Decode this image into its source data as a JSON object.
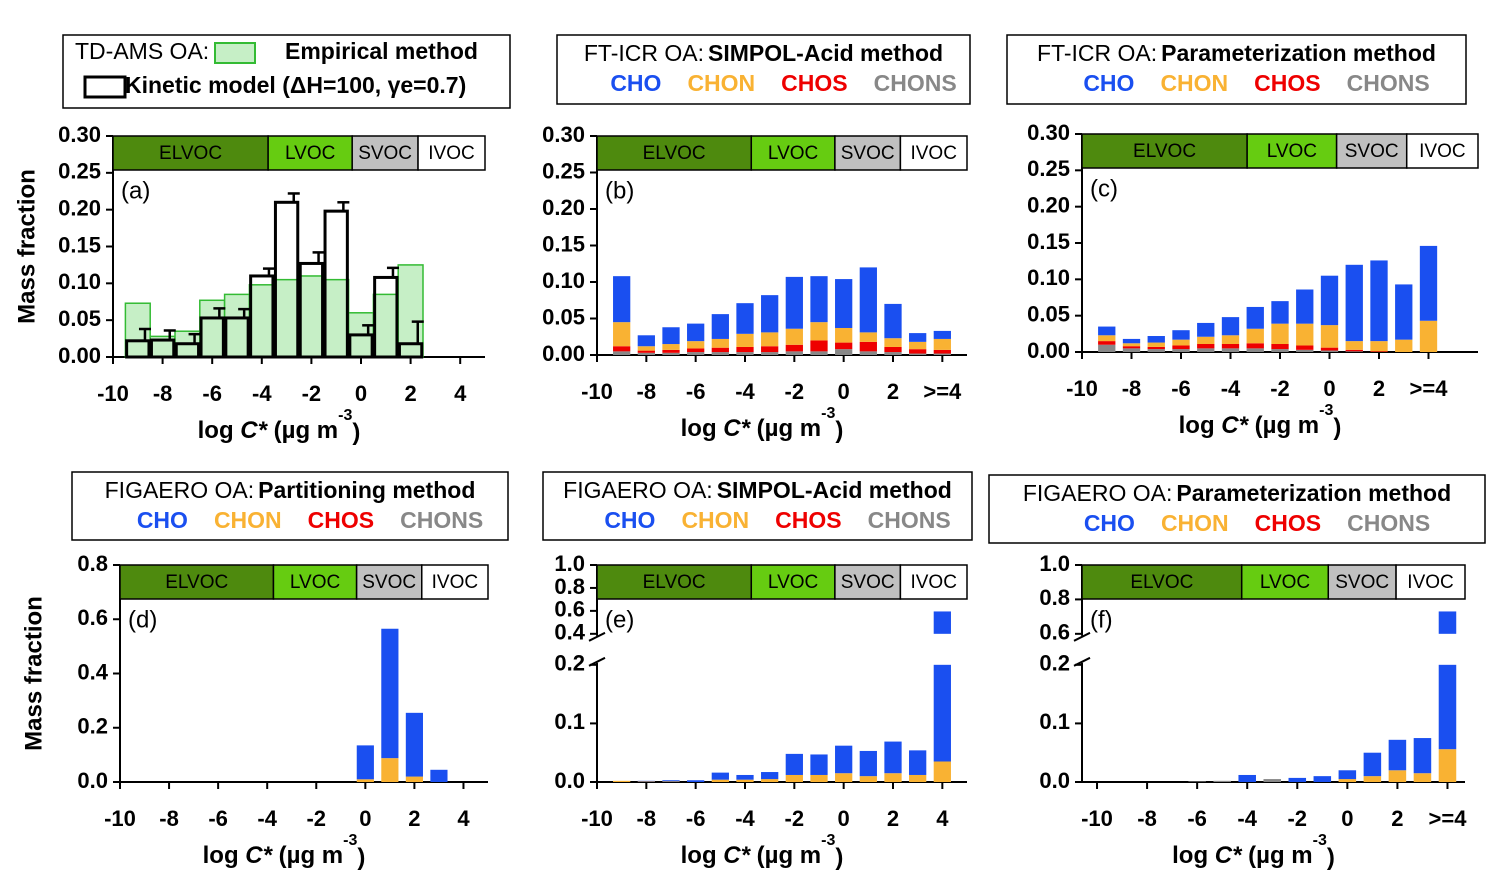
{
  "chart_data": [
    {
      "type": "bar",
      "stacked": false,
      "legend": "swatches",
      "title": "TD-AMS OA:",
      "panel_label": "(a)",
      "ylabel": "Mass fraction",
      "xlabel": [
        "log ",
        "C*",
        " (µg m",
        "-3",
        ")"
      ],
      "volatility_classes": [
        {
          "label": "ELVOC",
          "color": "#4e8a0e"
        },
        {
          "label": "LVOC",
          "color": "#66cc11"
        },
        {
          "label": "SVOC",
          "color": "#c0c0c0"
        },
        {
          "label": "IVOC",
          "color": "#ffffff"
        }
      ],
      "x": [
        -9,
        -8,
        -7,
        -6,
        -5,
        -4,
        -3,
        -2,
        -1,
        0,
        1,
        2
      ],
      "series": [
        {
          "name": "Empirical method",
          "color": "#33bb33",
          "fill": "#c6efc6",
          "values": [
            0.073,
            0.028,
            0.035,
            0.077,
            0.085,
            0.098,
            0.105,
            0.11,
            0.105,
            0.06,
            0.085,
            0.125
          ]
        },
        {
          "name": "Kinetic model (ΔH=100, γe=0.7)",
          "color": "#000000",
          "values": [
            0.022,
            0.023,
            0.018,
            0.053,
            0.053,
            0.11,
            0.21,
            0.127,
            0.198,
            0.03,
            0.108,
            0.018
          ],
          "errors": [
            0.016,
            0.013,
            0.013,
            0.013,
            0.012,
            0.01,
            0.012,
            0.015,
            0.012,
            0.013,
            0.013,
            0.03
          ]
        }
      ],
      "xlim": [
        -10,
        5
      ],
      "xticks": [
        -10,
        -8,
        -6,
        -4,
        -2,
        0,
        2,
        4
      ],
      "ylim": [
        0,
        0.3
      ],
      "yticks": [
        {
          "value": 0,
          "label": "0.00"
        },
        {
          "value": 0.05,
          "label": "0.05"
        },
        {
          "value": 0.1,
          "label": "0.10"
        },
        {
          "value": 0.15,
          "label": "0.15"
        },
        {
          "value": 0.2,
          "label": "0.20"
        },
        {
          "value": 0.25,
          "label": "0.25"
        },
        {
          "value": 0.3,
          "label": "0.30"
        }
      ]
    },
    {
      "type": "bar",
      "stacked": true,
      "legend": "colored-text",
      "title": "FT-ICR OA:",
      "title_bold": "SIMPOL-Acid method",
      "panel_label": "(b)",
      "xlabel": [
        "log ",
        "C*",
        " (µg m",
        "-3",
        ")"
      ],
      "volatility_classes": [
        {
          "label": "ELVOC",
          "color": "#4e8a0e"
        },
        {
          "label": "LVOC",
          "color": "#66cc11"
        },
        {
          "label": "SVOC",
          "color": "#c0c0c0"
        },
        {
          "label": "IVOC",
          "color": "#ffffff"
        }
      ],
      "x": [
        -9,
        -8,
        -7,
        -6,
        -5,
        -4,
        -3,
        -2,
        -1,
        0,
        1,
        2,
        3,
        4
      ],
      "series": [
        {
          "name": "CHO",
          "color": "#1a4ff0",
          "values": [
            0.063,
            0.015,
            0.023,
            0.024,
            0.034,
            0.042,
            0.051,
            0.071,
            0.063,
            0.067,
            0.089,
            0.047,
            0.012,
            0.011
          ]
        },
        {
          "name": "CHON",
          "color": "#f9b233",
          "values": [
            0.033,
            0.006,
            0.008,
            0.01,
            0.012,
            0.018,
            0.019,
            0.022,
            0.025,
            0.02,
            0.013,
            0.012,
            0.01,
            0.015
          ]
        },
        {
          "name": "CHOS",
          "color": "#ee0000",
          "values": [
            0.007,
            0.003,
            0.004,
            0.005,
            0.006,
            0.007,
            0.008,
            0.009,
            0.015,
            0.009,
            0.013,
            0.007,
            0.006,
            0.005
          ]
        },
        {
          "name": "CHONS",
          "color": "#888888",
          "values": [
            0.005,
            0.003,
            0.003,
            0.004,
            0.004,
            0.004,
            0.004,
            0.005,
            0.005,
            0.008,
            0.005,
            0.004,
            0.002,
            0.002
          ]
        }
      ],
      "xlim": [
        -10,
        5
      ],
      "xticks": [
        -10,
        -8,
        -6,
        -4,
        -2,
        0,
        2,
        {
          "value": 4,
          "label": ">=4"
        }
      ],
      "ylim": [
        0,
        0.3
      ],
      "yticks": [
        {
          "value": 0,
          "label": "0.00"
        },
        {
          "value": 0.05,
          "label": "0.05"
        },
        {
          "value": 0.1,
          "label": "0.10"
        },
        {
          "value": 0.15,
          "label": "0.15"
        },
        {
          "value": 0.2,
          "label": "0.20"
        },
        {
          "value": 0.25,
          "label": "0.25"
        },
        {
          "value": 0.3,
          "label": "0.30"
        }
      ]
    },
    {
      "type": "bar",
      "stacked": true,
      "legend": "colored-text",
      "title": "FT-ICR OA:",
      "title_bold": "Parameterization method",
      "panel_label": "(c)",
      "xlabel": [
        "log ",
        "C*",
        " (µg m",
        "-3",
        ")"
      ],
      "volatility_classes": [
        {
          "label": "ELVOC",
          "color": "#4e8a0e"
        },
        {
          "label": "LVOC",
          "color": "#66cc11"
        },
        {
          "label": "SVOC",
          "color": "#c0c0c0"
        },
        {
          "label": "IVOC",
          "color": "#ffffff"
        }
      ],
      "x": [
        -9,
        -8,
        -7,
        -6,
        -5,
        -4,
        -3,
        -2,
        -1,
        0,
        1,
        2,
        3,
        4
      ],
      "series": [
        {
          "name": "CHO",
          "color": "#1a4ff0",
          "values": [
            0.012,
            0.006,
            0.009,
            0.013,
            0.019,
            0.025,
            0.03,
            0.031,
            0.047,
            0.068,
            0.105,
            0.111,
            0.076,
            0.103
          ]
        },
        {
          "name": "CHON",
          "color": "#f9b233",
          "values": [
            0.008,
            0.004,
            0.006,
            0.008,
            0.01,
            0.012,
            0.02,
            0.028,
            0.03,
            0.031,
            0.012,
            0.014,
            0.017,
            0.043
          ]
        },
        {
          "name": "CHOS",
          "color": "#ee0000",
          "values": [
            0.005,
            0.003,
            0.003,
            0.005,
            0.006,
            0.006,
            0.007,
            0.007,
            0.006,
            0.004,
            0.002,
            0.001,
            0,
            0
          ]
        },
        {
          "name": "CHONS",
          "color": "#888888",
          "values": [
            0.01,
            0.005,
            0.004,
            0.004,
            0.005,
            0.005,
            0.005,
            0.004,
            0.003,
            0.002,
            0.001,
            0,
            0,
            0
          ]
        }
      ],
      "xlim": [
        -10,
        6
      ],
      "xticks": [
        -10,
        -8,
        -6,
        -4,
        -2,
        0,
        2,
        {
          "value": 4,
          "label": ">=4"
        }
      ],
      "ylim": [
        0,
        0.3
      ],
      "yticks": [
        {
          "value": 0,
          "label": "0.00"
        },
        {
          "value": 0.05,
          "label": "0.05"
        },
        {
          "value": 0.1,
          "label": "0.10"
        },
        {
          "value": 0.15,
          "label": "0.15"
        },
        {
          "value": 0.2,
          "label": "0.20"
        },
        {
          "value": 0.25,
          "label": "0.25"
        },
        {
          "value": 0.3,
          "label": "0.30"
        }
      ]
    },
    {
      "type": "bar",
      "stacked": true,
      "legend": "colored-text",
      "title": "FIGAERO OA:",
      "title_bold": "Partitioning method",
      "panel_label": "(d)",
      "ylabel": "Mass fraction",
      "xlabel": [
        "log ",
        "C*",
        " (µg m",
        "-3",
        ")"
      ],
      "volatility_classes": [
        {
          "label": "ELVOC",
          "color": "#4e8a0e"
        },
        {
          "label": "LVOC",
          "color": "#66cc11"
        },
        {
          "label": "SVOC",
          "color": "#c0c0c0"
        },
        {
          "label": "IVOC",
          "color": "#ffffff"
        }
      ],
      "x": [
        0,
        1,
        2,
        3
      ],
      "series": [
        {
          "name": "CHO",
          "color": "#1a4ff0",
          "values": [
            0.125,
            0.477,
            0.235,
            0.045
          ]
        },
        {
          "name": "CHON",
          "color": "#f9b233",
          "values": [
            0.01,
            0.088,
            0.02,
            0
          ]
        },
        {
          "name": "CHOS",
          "color": "#ee0000",
          "values": [
            0,
            0,
            0,
            0
          ]
        },
        {
          "name": "CHONS",
          "color": "#888888",
          "values": [
            0,
            0,
            0,
            0
          ]
        }
      ],
      "xlim": [
        -10,
        5
      ],
      "xticks": [
        -10,
        -8,
        -6,
        -4,
        -2,
        0,
        2,
        4
      ],
      "ylim": [
        0,
        0.8
      ],
      "yticks": [
        {
          "value": 0,
          "label": "0.0"
        },
        0.2,
        0.4,
        0.6,
        0.8
      ]
    },
    {
      "type": "bar",
      "stacked": true,
      "legend": "colored-text",
      "title": "FIGAERO OA:",
      "title_bold": "SIMPOL-Acid method",
      "panel_label": "(e)",
      "xlabel": [
        "log ",
        "C*",
        " (µg m",
        "-3",
        ")"
      ],
      "volatility_classes": [
        {
          "label": "ELVOC",
          "color": "#4e8a0e"
        },
        {
          "label": "LVOC",
          "color": "#66cc11"
        },
        {
          "label": "SVOC",
          "color": "#c0c0c0"
        },
        {
          "label": "IVOC",
          "color": "#ffffff"
        }
      ],
      "x": [
        -9,
        -8,
        -7,
        -6,
        -5,
        -4,
        -3,
        -2,
        -1,
        0,
        1,
        2,
        3,
        4
      ],
      "series": [
        {
          "name": "CHO",
          "color": "#1a4ff0",
          "values": [
            0,
            0.001,
            0.002,
            0.003,
            0.012,
            0.008,
            0.012,
            0.036,
            0.035,
            0.047,
            0.043,
            0.054,
            0.042,
            0.56
          ]
        },
        {
          "name": "CHON",
          "color": "#f9b233",
          "values": [
            0.002,
            0.001,
            0.001,
            0,
            0.004,
            0.004,
            0.005,
            0.012,
            0.012,
            0.015,
            0.01,
            0.015,
            0.012,
            0.035
          ]
        },
        {
          "name": "CHOS",
          "color": "#ee0000",
          "values": [
            0,
            0,
            0,
            0,
            0,
            0,
            0,
            0,
            0,
            0,
            0,
            0,
            0,
            0
          ]
        },
        {
          "name": "CHONS",
          "color": "#888888",
          "values": [
            0,
            0,
            0,
            0,
            0,
            0,
            0,
            0,
            0,
            0,
            0,
            0,
            0,
            0
          ]
        }
      ],
      "xlim": [
        -10,
        5
      ],
      "xticks": [
        -10,
        -8,
        -6,
        -4,
        -2,
        0,
        2,
        4
      ],
      "ylim": [
        0,
        1.0
      ],
      "ybreak": [
        0.2,
        0.4
      ],
      "yticks": [
        {
          "value": 0,
          "label": "0.0"
        },
        0.1,
        0.2,
        0.4,
        0.6,
        0.8,
        {
          "value": 1.0,
          "label": "1.0"
        }
      ]
    },
    {
      "type": "bar",
      "stacked": true,
      "legend": "colored-text",
      "title": "FIGAERO OA:",
      "title_bold": "Parameterization method",
      "panel_label": "(f)",
      "xlabel": [
        "log ",
        "C*",
        " (µg m",
        "-3",
        ")"
      ],
      "volatility_classes": [
        {
          "label": "ELVOC",
          "color": "#4e8a0e"
        },
        {
          "label": "LVOC",
          "color": "#66cc11"
        },
        {
          "label": "SVOC",
          "color": "#c0c0c0"
        },
        {
          "label": "IVOC",
          "color": "#ffffff"
        }
      ],
      "x": [
        -9,
        -8,
        -7,
        -6,
        -5,
        -4,
        -3,
        -2,
        -1,
        0,
        1,
        2,
        3,
        4
      ],
      "series": [
        {
          "name": "CHO",
          "color": "#1a4ff0",
          "values": [
            0,
            0,
            0,
            0,
            0,
            0.012,
            0,
            0.007,
            0.01,
            0.015,
            0.04,
            0.052,
            0.06,
            0.674
          ]
        },
        {
          "name": "CHON",
          "color": "#f9b233",
          "values": [
            0,
            0,
            0,
            0,
            0,
            0,
            0,
            0,
            0,
            0.005,
            0.01,
            0.02,
            0.015,
            0.056
          ]
        },
        {
          "name": "CHOS",
          "color": "#ee0000",
          "values": [
            0,
            0,
            0,
            0,
            0,
            0,
            0,
            0,
            0,
            0,
            0,
            0,
            0,
            0
          ]
        },
        {
          "name": "CHONS",
          "color": "#888888",
          "values": [
            0,
            0,
            0,
            0.001,
            0.002,
            0,
            0.005,
            0,
            0,
            0,
            0,
            0,
            0,
            0
          ]
        }
      ],
      "xlim": [
        -10.6,
        4.7
      ],
      "xticks": [
        -10,
        -8,
        -6,
        -4,
        -2,
        0,
        2,
        {
          "value": 4,
          "label": ">=4"
        }
      ],
      "ylim": [
        0,
        1.0
      ],
      "ybreak": [
        0.2,
        0.6
      ],
      "yticks": [
        {
          "value": 0,
          "label": "0.0"
        },
        0.1,
        0.2,
        0.6,
        0.8,
        {
          "value": 1.0,
          "label": "1.0"
        }
      ]
    }
  ]
}
